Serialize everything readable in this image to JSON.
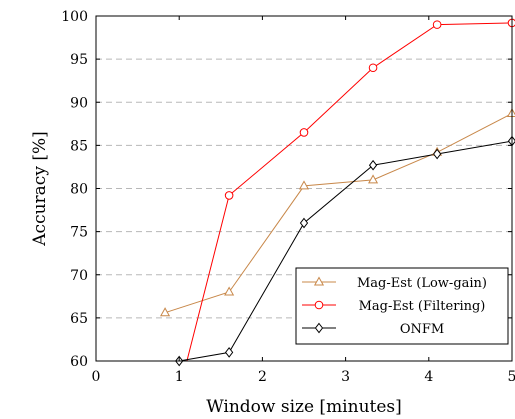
{
  "chart_data": {
    "type": "line",
    "xlabel": "Window size [minutes]",
    "ylabel": "Accuracy [%]",
    "xlim": [
      0,
      5
    ],
    "ylim": [
      60,
      100
    ],
    "xticks": [
      0,
      1,
      2,
      3,
      4,
      5
    ],
    "yticks": [
      60,
      65,
      70,
      75,
      80,
      85,
      90,
      95,
      100
    ],
    "grid": "horizontal dashed",
    "legend_position": "bottom-right",
    "series": [
      {
        "name": "Mag-Est (Low-gain)",
        "color": "#c8884a",
        "marker": "triangle",
        "x": [
          0.83,
          1.6,
          2.5,
          3.33,
          4.1,
          5.0
        ],
        "y": [
          65.6,
          68.0,
          80.3,
          81.0,
          84.2,
          88.7
        ]
      },
      {
        "name": "Mag-Est (Filtering)",
        "color": "#ff0000",
        "marker": "circle",
        "x": [
          1.0,
          1.6,
          2.5,
          3.33,
          4.1,
          5.0
        ],
        "y": [
          56.5,
          79.2,
          86.5,
          94.0,
          99.0,
          99.2
        ]
      },
      {
        "name": "ONFM",
        "color": "#000000",
        "marker": "diamond",
        "x": [
          1.0,
          1.6,
          2.5,
          3.33,
          4.1,
          5.0
        ],
        "y": [
          60.0,
          61.0,
          76.0,
          82.7,
          84.0,
          85.5
        ]
      }
    ]
  }
}
